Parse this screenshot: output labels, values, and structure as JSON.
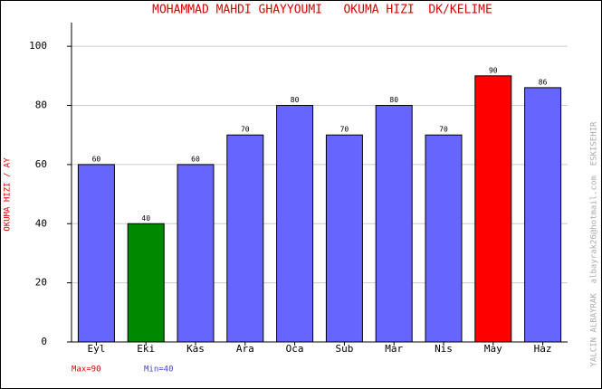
{
  "chart_data": {
    "type": "bar",
    "title": "MOHAMMAD MAHDI GHAYYOUMI   OKUMA HIZI  DK/KELIME",
    "y_label": "OKUMA HIZI / AY",
    "side_note": "YALCIN ALBAYRAK  albayrak26@hotmail.com  ESKISEHIR",
    "max_note": "Max=90",
    "min_note": "Min=40",
    "categories": [
      "Eyl",
      "Eki",
      "Kas",
      "Ara",
      "Oca",
      "Sub",
      "Mar",
      "Nis",
      "May",
      "Haz"
    ],
    "values": [
      60,
      40,
      60,
      70,
      80,
      70,
      80,
      70,
      90,
      86
    ],
    "colors": [
      "#6666ff",
      "#008800",
      "#6666ff",
      "#6666ff",
      "#6666ff",
      "#6666ff",
      "#6666ff",
      "#6666ff",
      "#ff0000",
      "#6666ff"
    ],
    "ylim": [
      0,
      108
    ],
    "yticks": [
      0,
      20,
      40,
      60,
      80,
      100
    ],
    "grid": true
  }
}
